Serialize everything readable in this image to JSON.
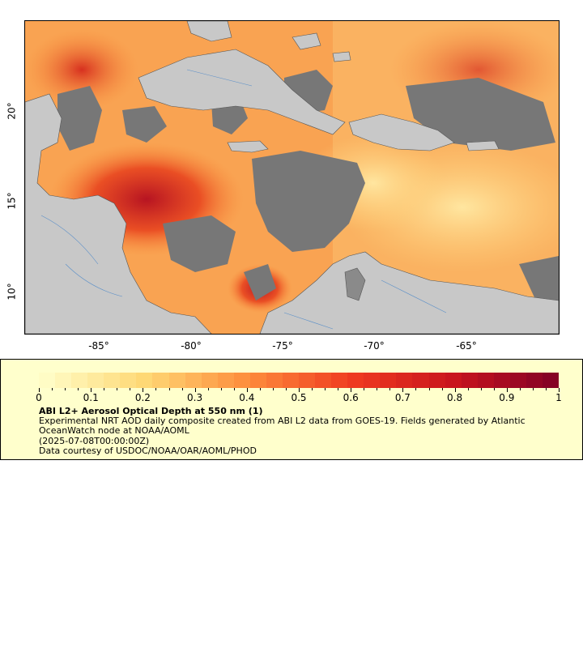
{
  "map": {
    "x_ticks": [
      "-85°",
      "-80°",
      "-75°",
      "-70°",
      "-65°"
    ],
    "y_ticks": [
      "20°",
      "15°",
      "10°"
    ],
    "colors": {
      "land": "#c8c8c8",
      "no_data": "#777777",
      "low": "#ffd27a",
      "mid": "#f98b3a",
      "high": "#d7301f",
      "extreme": "#8b0a26"
    }
  },
  "legend": {
    "colorbar_ticks": [
      "0",
      "0.1",
      "0.2",
      "0.3",
      "0.4",
      "0.5",
      "0.6",
      "0.7",
      "0.8",
      "0.9",
      "1"
    ],
    "colorbar_range": [
      0,
      1
    ],
    "title": "ABI L2+ Aerosol Optical Depth at 550 nm (1)",
    "description": "Experimental NRT AOD daily composite created from ABI L2 data from GOES-19. Fields generated by Atlantic OceanWatch node at NOAA/AOML",
    "date": "(2025-07-08T00:00:00Z)",
    "credit": "Data courtesy of USDOC/NOAA/OAR/AOML/PHOD"
  }
}
